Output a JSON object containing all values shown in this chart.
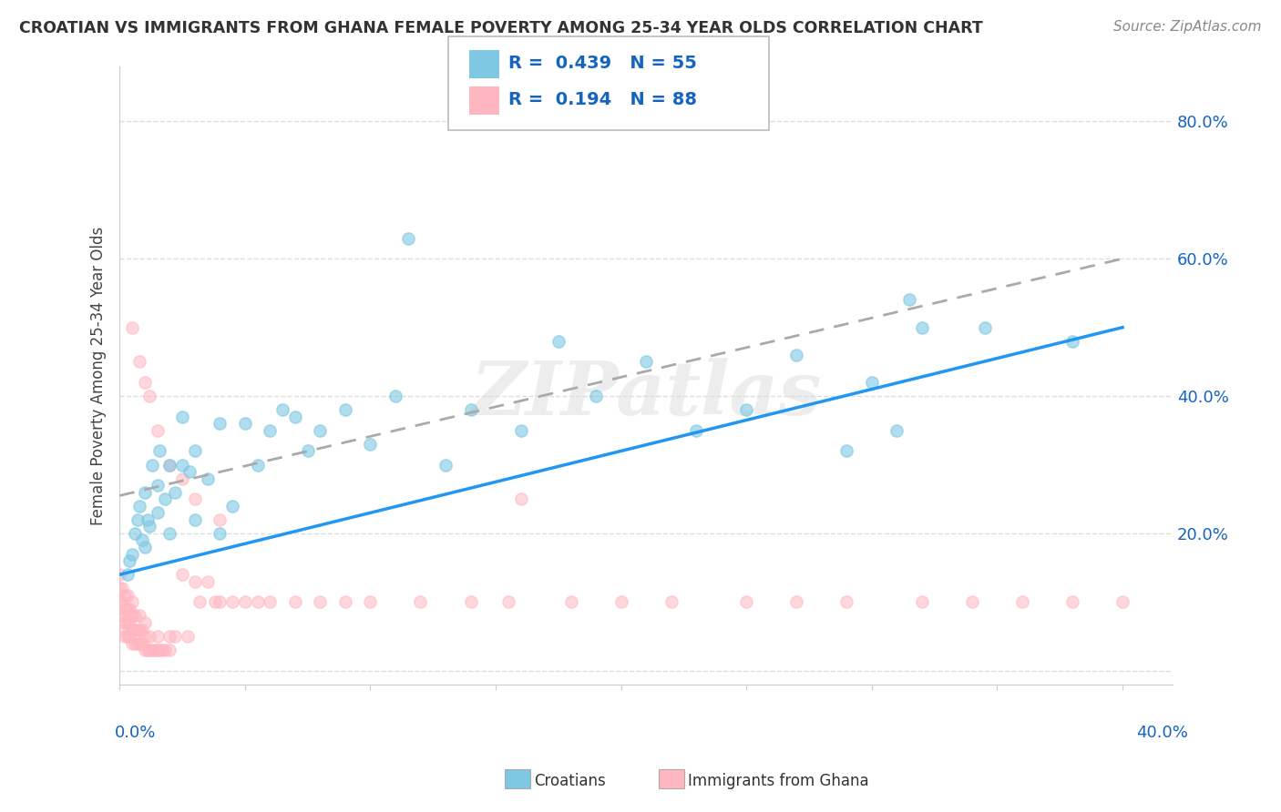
{
  "title": "CROATIAN VS IMMIGRANTS FROM GHANA FEMALE POVERTY AMONG 25-34 YEAR OLDS CORRELATION CHART",
  "source": "Source: ZipAtlas.com",
  "ylabel": "Female Poverty Among 25-34 Year Olds",
  "xlim": [
    0.0,
    0.42
  ],
  "ylim": [
    -0.02,
    0.88
  ],
  "legend1_R": "0.439",
  "legend1_N": "55",
  "legend2_R": "0.194",
  "legend2_N": "88",
  "color_blue": "#7ec8e3",
  "color_pink": "#ffb6c1",
  "color_blue_dark": "#2196F3",
  "color_blue_text": "#1565C0",
  "color_pink_text": "#e91e8c",
  "watermark": "ZIPatlas",
  "background_color": "#ffffff",
  "grid_color": "#dddddd",
  "blue_x": [
    0.003,
    0.004,
    0.005,
    0.006,
    0.007,
    0.008,
    0.009,
    0.01,
    0.01,
    0.011,
    0.012,
    0.013,
    0.015,
    0.015,
    0.016,
    0.018,
    0.02,
    0.02,
    0.022,
    0.025,
    0.025,
    0.028,
    0.03,
    0.03,
    0.035,
    0.04,
    0.04,
    0.045,
    0.05,
    0.055,
    0.06,
    0.065,
    0.07,
    0.075,
    0.08,
    0.09,
    0.1,
    0.11,
    0.115,
    0.13,
    0.14,
    0.16,
    0.175,
    0.19,
    0.21,
    0.23,
    0.25,
    0.27,
    0.29,
    0.3,
    0.31,
    0.315,
    0.32,
    0.345,
    0.38
  ],
  "blue_y": [
    0.14,
    0.16,
    0.17,
    0.2,
    0.22,
    0.24,
    0.19,
    0.18,
    0.26,
    0.22,
    0.21,
    0.3,
    0.23,
    0.27,
    0.32,
    0.25,
    0.2,
    0.3,
    0.26,
    0.37,
    0.3,
    0.29,
    0.22,
    0.32,
    0.28,
    0.2,
    0.36,
    0.24,
    0.36,
    0.3,
    0.35,
    0.38,
    0.37,
    0.32,
    0.35,
    0.38,
    0.33,
    0.4,
    0.63,
    0.3,
    0.38,
    0.35,
    0.48,
    0.4,
    0.45,
    0.35,
    0.38,
    0.46,
    0.32,
    0.42,
    0.35,
    0.54,
    0.5,
    0.5,
    0.48
  ],
  "pink_x": [
    0.0,
    0.0,
    0.0,
    0.0,
    0.001,
    0.001,
    0.001,
    0.001,
    0.002,
    0.002,
    0.002,
    0.002,
    0.003,
    0.003,
    0.003,
    0.003,
    0.004,
    0.004,
    0.004,
    0.005,
    0.005,
    0.005,
    0.005,
    0.006,
    0.006,
    0.006,
    0.007,
    0.007,
    0.008,
    0.008,
    0.008,
    0.009,
    0.009,
    0.01,
    0.01,
    0.01,
    0.011,
    0.012,
    0.012,
    0.013,
    0.014,
    0.015,
    0.015,
    0.016,
    0.017,
    0.018,
    0.02,
    0.02,
    0.022,
    0.025,
    0.027,
    0.03,
    0.032,
    0.035,
    0.038,
    0.04,
    0.045,
    0.05,
    0.055,
    0.06,
    0.07,
    0.08,
    0.09,
    0.1,
    0.12,
    0.14,
    0.155,
    0.16,
    0.18,
    0.2,
    0.22,
    0.25,
    0.27,
    0.29,
    0.32,
    0.34,
    0.36,
    0.38,
    0.4,
    0.005,
    0.008,
    0.01,
    0.012,
    0.015,
    0.02,
    0.025,
    0.03,
    0.04
  ],
  "pink_y": [
    0.08,
    0.1,
    0.12,
    0.14,
    0.06,
    0.08,
    0.1,
    0.12,
    0.05,
    0.07,
    0.09,
    0.11,
    0.05,
    0.07,
    0.09,
    0.11,
    0.05,
    0.07,
    0.09,
    0.04,
    0.06,
    0.08,
    0.1,
    0.04,
    0.06,
    0.08,
    0.04,
    0.06,
    0.04,
    0.06,
    0.08,
    0.04,
    0.06,
    0.03,
    0.05,
    0.07,
    0.03,
    0.03,
    0.05,
    0.03,
    0.03,
    0.03,
    0.05,
    0.03,
    0.03,
    0.03,
    0.03,
    0.05,
    0.05,
    0.14,
    0.05,
    0.13,
    0.1,
    0.13,
    0.1,
    0.1,
    0.1,
    0.1,
    0.1,
    0.1,
    0.1,
    0.1,
    0.1,
    0.1,
    0.1,
    0.1,
    0.1,
    0.25,
    0.1,
    0.1,
    0.1,
    0.1,
    0.1,
    0.1,
    0.1,
    0.1,
    0.1,
    0.1,
    0.1,
    0.5,
    0.45,
    0.42,
    0.4,
    0.35,
    0.3,
    0.28,
    0.25,
    0.22
  ],
  "blue_trend_x0": 0.0,
  "blue_trend_y0": 0.14,
  "blue_trend_x1": 0.4,
  "blue_trend_y1": 0.5,
  "pink_trend_x0": 0.0,
  "pink_trend_y0": 0.255,
  "pink_trend_x1": 0.4,
  "pink_trend_y1": 0.6
}
